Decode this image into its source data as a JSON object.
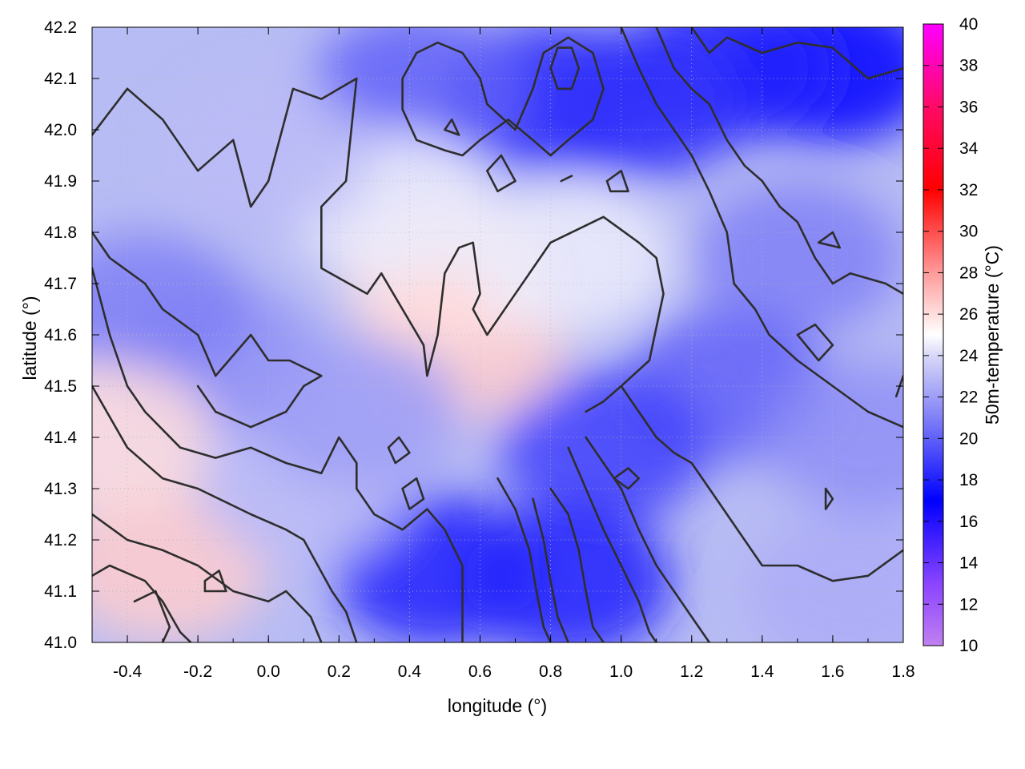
{
  "chart_data": {
    "type": "heatmap",
    "xlabel": "longitude (°)",
    "ylabel": "latitude (°)",
    "colorbar_label": "50m-temperature (°C)",
    "xlim": [
      -0.5,
      1.8
    ],
    "ylim": [
      41.0,
      42.2
    ],
    "clim": [
      10,
      40
    ],
    "x_ticks": [
      "-0.4",
      "-0.2",
      "0.0",
      "0.2",
      "0.4",
      "0.6",
      "0.8",
      "1.0",
      "1.2",
      "1.4",
      "1.6",
      "1.8"
    ],
    "y_ticks": [
      "41.0",
      "41.1",
      "41.2",
      "41.3",
      "41.4",
      "41.5",
      "41.6",
      "41.7",
      "41.8",
      "41.9",
      "42.0",
      "42.1",
      "42.2"
    ],
    "colorbar_ticks": [
      "10",
      "12",
      "14",
      "16",
      "18",
      "20",
      "22",
      "24",
      "26",
      "28",
      "30",
      "32",
      "34",
      "36",
      "38",
      "40"
    ],
    "colormap": [
      {
        "value": 10,
        "color": "#c080f0"
      },
      {
        "value": 13,
        "color": "#8a44ff"
      },
      {
        "value": 17,
        "color": "#0000ff"
      },
      {
        "value": 21,
        "color": "#8080f6"
      },
      {
        "value": 24,
        "color": "#d8d8f8"
      },
      {
        "value": 25,
        "color": "#ffffff"
      },
      {
        "value": 28,
        "color": "#ff9a9a"
      },
      {
        "value": 32,
        "color": "#ff0000"
      },
      {
        "value": 36,
        "color": "#ff0a66"
      },
      {
        "value": 40,
        "color": "#ff00ff"
      }
    ],
    "regions": [
      {
        "lon": 1.6,
        "lat": 42.12,
        "temp": 17
      },
      {
        "lon": 1.3,
        "lat": 42.12,
        "temp": 18
      },
      {
        "lon": 1.05,
        "lat": 42.05,
        "temp": 18.5
      },
      {
        "lon": 0.8,
        "lat": 42.06,
        "temp": 18.5
      },
      {
        "lon": 0.42,
        "lat": 42.08,
        "temp": 20
      },
      {
        "lon": 1.5,
        "lat": 41.75,
        "temp": 21
      },
      {
        "lon": 1.3,
        "lat": 41.5,
        "temp": 20
      },
      {
        "lon": 0.95,
        "lat": 41.38,
        "temp": 19
      },
      {
        "lon": 0.85,
        "lat": 41.12,
        "temp": 18
      },
      {
        "lon": 0.48,
        "lat": 41.14,
        "temp": 18
      },
      {
        "lon": -0.15,
        "lat": 41.55,
        "temp": 21.5
      },
      {
        "lon": -0.35,
        "lat": 41.65,
        "temp": 21
      },
      {
        "lon": 0.55,
        "lat": 41.58,
        "temp": 26.5
      },
      {
        "lon": 0.5,
        "lat": 41.72,
        "temp": 26
      },
      {
        "lon": 0.35,
        "lat": 41.85,
        "temp": 24.5
      },
      {
        "lon": -0.3,
        "lat": 41.15,
        "temp": 26.5
      },
      {
        "lon": -0.45,
        "lat": 41.4,
        "temp": 26
      },
      {
        "lon": 0.1,
        "lat": 41.3,
        "temp": 23
      },
      {
        "lon": 1.65,
        "lat": 41.1,
        "temp": 22.5
      },
      {
        "lon": 1.7,
        "lat": 41.4,
        "temp": 21.5
      },
      {
        "lon": 0.0,
        "lat": 41.95,
        "temp": 23
      },
      {
        "lon": 0.85,
        "lat": 41.75,
        "temp": 24.5
      },
      {
        "lon": 0.25,
        "lat": 41.45,
        "temp": 22
      }
    ],
    "contour_lines": [
      [
        [
          -0.5,
          41.99
        ],
        [
          -0.4,
          42.08
        ],
        [
          -0.3,
          42.02
        ],
        [
          -0.2,
          41.92
        ],
        [
          -0.1,
          41.98
        ],
        [
          -0.05,
          41.85
        ],
        [
          0.0,
          41.9
        ],
        [
          0.07,
          42.08
        ],
        [
          0.15,
          42.06
        ],
        [
          0.2,
          42.08
        ],
        [
          0.25,
          42.1
        ],
        [
          0.22,
          41.9
        ],
        [
          0.15,
          41.85
        ],
        [
          0.15,
          41.73
        ],
        [
          0.28,
          41.68
        ],
        [
          0.32,
          41.72
        ],
        [
          0.44,
          41.58
        ],
        [
          0.45,
          41.52
        ],
        [
          0.48,
          41.6
        ],
        [
          0.5,
          41.72
        ],
        [
          0.54,
          41.77
        ],
        [
          0.58,
          41.78
        ],
        [
          0.6,
          41.68
        ],
        [
          0.58,
          41.65
        ],
        [
          0.62,
          41.6
        ],
        [
          0.7,
          41.68
        ],
        [
          0.8,
          41.78
        ],
        [
          0.95,
          41.83
        ],
        [
          1.05,
          41.78
        ],
        [
          1.1,
          41.75
        ],
        [
          1.12,
          41.68
        ],
        [
          1.08,
          41.55
        ],
        [
          1.0,
          41.5
        ],
        [
          0.95,
          41.47
        ],
        [
          0.9,
          41.45
        ]
      ],
      [
        [
          -0.5,
          41.8
        ],
        [
          -0.45,
          41.75
        ],
        [
          -0.35,
          41.7
        ],
        [
          -0.3,
          41.65
        ],
        [
          -0.2,
          41.6
        ],
        [
          -0.15,
          41.52
        ],
        [
          -0.05,
          41.6
        ],
        [
          0.0,
          41.55
        ],
        [
          0.06,
          41.55
        ],
        [
          0.15,
          41.52
        ],
        [
          0.1,
          41.5
        ],
        [
          0.05,
          41.45
        ],
        [
          -0.05,
          41.42
        ],
        [
          -0.15,
          41.45
        ],
        [
          -0.2,
          41.5
        ]
      ],
      [
        [
          -0.5,
          41.73
        ],
        [
          -0.45,
          41.6
        ],
        [
          -0.4,
          41.5
        ],
        [
          -0.35,
          41.45
        ],
        [
          -0.25,
          41.38
        ],
        [
          -0.15,
          41.36
        ],
        [
          -0.05,
          41.38
        ],
        [
          0.05,
          41.35
        ],
        [
          0.15,
          41.33
        ],
        [
          0.2,
          41.4
        ],
        [
          0.25,
          41.35
        ],
        [
          0.25,
          41.3
        ],
        [
          0.3,
          41.25
        ],
        [
          0.38,
          41.22
        ],
        [
          0.45,
          41.26
        ],
        [
          0.5,
          41.22
        ],
        [
          0.55,
          41.15
        ],
        [
          0.55,
          41.05
        ],
        [
          0.55,
          41.0
        ]
      ],
      [
        [
          -0.5,
          41.5
        ],
        [
          -0.4,
          41.38
        ],
        [
          -0.3,
          41.32
        ],
        [
          -0.2,
          41.3
        ],
        [
          -0.05,
          41.25
        ],
        [
          0.05,
          41.22
        ],
        [
          0.1,
          41.2
        ],
        [
          0.18,
          41.1
        ],
        [
          0.22,
          41.06
        ],
        [
          0.25,
          41.0
        ]
      ],
      [
        [
          -0.5,
          41.25
        ],
        [
          -0.4,
          41.2
        ],
        [
          -0.3,
          41.18
        ],
        [
          -0.2,
          41.15
        ],
        [
          -0.1,
          41.1
        ],
        [
          0.0,
          41.08
        ],
        [
          0.05,
          41.1
        ],
        [
          0.12,
          41.05
        ],
        [
          0.15,
          41.0
        ]
      ],
      [
        [
          -0.5,
          41.13
        ],
        [
          -0.45,
          41.15
        ],
        [
          -0.35,
          41.12
        ],
        [
          -0.3,
          41.08
        ],
        [
          -0.25,
          41.02
        ],
        [
          -0.22,
          41.0
        ]
      ],
      [
        [
          -0.38,
          41.08
        ],
        [
          -0.32,
          41.1
        ],
        [
          -0.28,
          41.03
        ],
        [
          -0.3,
          41.0
        ]
      ],
      [
        [
          -0.18,
          41.12
        ],
        [
          -0.14,
          41.14
        ],
        [
          -0.12,
          41.1
        ],
        [
          -0.18,
          41.1
        ],
        [
          -0.18,
          41.12
        ]
      ],
      [
        [
          0.42,
          42.15
        ],
        [
          0.48,
          42.17
        ],
        [
          0.55,
          42.15
        ],
        [
          0.6,
          42.1
        ],
        [
          0.62,
          42.05
        ],
        [
          0.7,
          42.0
        ],
        [
          0.75,
          42.08
        ],
        [
          0.78,
          42.15
        ],
        [
          0.85,
          42.18
        ],
        [
          0.92,
          42.15
        ],
        [
          0.95,
          42.08
        ],
        [
          0.92,
          42.02
        ],
        [
          0.85,
          41.98
        ],
        [
          0.8,
          41.95
        ],
        [
          0.75,
          41.98
        ],
        [
          0.68,
          42.02
        ],
        [
          0.6,
          41.98
        ],
        [
          0.55,
          41.95
        ],
        [
          0.5,
          41.96
        ],
        [
          0.42,
          41.98
        ],
        [
          0.38,
          42.04
        ],
        [
          0.38,
          42.1
        ],
        [
          0.42,
          42.15
        ]
      ],
      [
        [
          0.8,
          42.12
        ],
        [
          0.82,
          42.16
        ],
        [
          0.86,
          42.16
        ],
        [
          0.88,
          42.12
        ],
        [
          0.86,
          42.08
        ],
        [
          0.82,
          42.08
        ],
        [
          0.8,
          42.12
        ]
      ],
      [
        [
          1.2,
          42.2
        ],
        [
          1.25,
          42.15
        ],
        [
          1.3,
          42.18
        ],
        [
          1.4,
          42.15
        ],
        [
          1.5,
          42.17
        ],
        [
          1.6,
          42.16
        ],
        [
          1.7,
          42.1
        ],
        [
          1.8,
          42.12
        ]
      ],
      [
        [
          1.1,
          42.2
        ],
        [
          1.15,
          42.12
        ],
        [
          1.2,
          42.08
        ],
        [
          1.25,
          42.05
        ],
        [
          1.3,
          41.98
        ],
        [
          1.35,
          41.93
        ],
        [
          1.4,
          41.9
        ],
        [
          1.45,
          41.85
        ],
        [
          1.5,
          41.82
        ],
        [
          1.55,
          41.75
        ],
        [
          1.6,
          41.7
        ],
        [
          1.65,
          41.72
        ],
        [
          1.75,
          41.7
        ],
        [
          1.8,
          41.68
        ]
      ],
      [
        [
          1.0,
          42.2
        ],
        [
          1.05,
          42.12
        ],
        [
          1.1,
          42.05
        ],
        [
          1.15,
          42.0
        ],
        [
          1.2,
          41.95
        ],
        [
          1.25,
          41.88
        ],
        [
          1.3,
          41.8
        ],
        [
          1.32,
          41.7
        ],
        [
          1.38,
          41.65
        ],
        [
          1.42,
          41.6
        ],
        [
          1.5,
          41.55
        ],
        [
          1.6,
          41.5
        ],
        [
          1.7,
          41.45
        ],
        [
          1.8,
          41.42
        ]
      ],
      [
        [
          1.0,
          41.5
        ],
        [
          1.05,
          41.45
        ],
        [
          1.1,
          41.4
        ],
        [
          1.15,
          41.37
        ],
        [
          1.2,
          41.35
        ],
        [
          1.25,
          41.3
        ],
        [
          1.3,
          41.25
        ],
        [
          1.35,
          41.2
        ],
        [
          1.4,
          41.15
        ],
        [
          1.5,
          41.15
        ],
        [
          1.6,
          41.12
        ],
        [
          1.7,
          41.13
        ],
        [
          1.8,
          41.18
        ]
      ],
      [
        [
          0.9,
          41.4
        ],
        [
          0.95,
          41.35
        ],
        [
          1.0,
          41.3
        ],
        [
          1.05,
          41.22
        ],
        [
          1.1,
          41.15
        ],
        [
          1.15,
          41.1
        ],
        [
          1.2,
          41.05
        ],
        [
          1.25,
          41.0
        ]
      ],
      [
        [
          0.85,
          41.38
        ],
        [
          0.9,
          41.3
        ],
        [
          0.95,
          41.22
        ],
        [
          1.0,
          41.15
        ],
        [
          1.05,
          41.08
        ],
        [
          1.08,
          41.02
        ],
        [
          1.1,
          41.0
        ]
      ],
      [
        [
          0.8,
          41.3
        ],
        [
          0.85,
          41.25
        ],
        [
          0.88,
          41.18
        ],
        [
          0.9,
          41.1
        ],
        [
          0.92,
          41.03
        ],
        [
          0.95,
          41.0
        ]
      ],
      [
        [
          0.75,
          41.28
        ],
        [
          0.78,
          41.2
        ],
        [
          0.8,
          41.12
        ],
        [
          0.82,
          41.05
        ],
        [
          0.85,
          41.0
        ]
      ],
      [
        [
          0.65,
          41.32
        ],
        [
          0.7,
          41.26
        ],
        [
          0.74,
          41.18
        ],
        [
          0.76,
          41.1
        ],
        [
          0.78,
          41.03
        ],
        [
          0.8,
          41.0
        ]
      ],
      [
        [
          0.98,
          41.32
        ],
        [
          1.02,
          41.34
        ],
        [
          1.05,
          41.32
        ],
        [
          1.02,
          41.3
        ],
        [
          0.98,
          41.32
        ]
      ],
      [
        [
          0.38,
          41.3
        ],
        [
          0.42,
          41.32
        ],
        [
          0.44,
          41.28
        ],
        [
          0.4,
          41.26
        ],
        [
          0.38,
          41.3
        ]
      ],
      [
        [
          0.34,
          41.38
        ],
        [
          0.37,
          41.4
        ],
        [
          0.4,
          41.37
        ],
        [
          0.36,
          41.35
        ],
        [
          0.34,
          41.38
        ]
      ],
      [
        [
          1.5,
          41.6
        ],
        [
          1.55,
          41.62
        ],
        [
          1.6,
          41.58
        ],
        [
          1.56,
          41.55
        ],
        [
          1.5,
          41.6
        ]
      ],
      [
        [
          1.58,
          41.3
        ],
        [
          1.6,
          41.28
        ],
        [
          1.58,
          41.26
        ],
        [
          1.58,
          41.3
        ]
      ],
      [
        [
          1.56,
          41.78
        ],
        [
          1.6,
          41.8
        ],
        [
          1.62,
          41.77
        ],
        [
          1.56,
          41.78
        ]
      ],
      [
        [
          1.78,
          41.48
        ],
        [
          1.8,
          41.52
        ]
      ],
      [
        [
          0.5,
          42.0
        ],
        [
          0.52,
          42.02
        ],
        [
          0.54,
          41.99
        ],
        [
          0.5,
          42.0
        ]
      ],
      [
        [
          0.62,
          41.92
        ],
        [
          0.66,
          41.95
        ],
        [
          0.7,
          41.9
        ],
        [
          0.65,
          41.88
        ],
        [
          0.62,
          41.92
        ]
      ],
      [
        [
          0.83,
          41.9
        ],
        [
          0.86,
          41.91
        ]
      ],
      [
        [
          0.96,
          41.9
        ],
        [
          1.0,
          41.92
        ],
        [
          1.02,
          41.88
        ],
        [
          0.97,
          41.88
        ],
        [
          0.96,
          41.9
        ]
      ]
    ]
  }
}
